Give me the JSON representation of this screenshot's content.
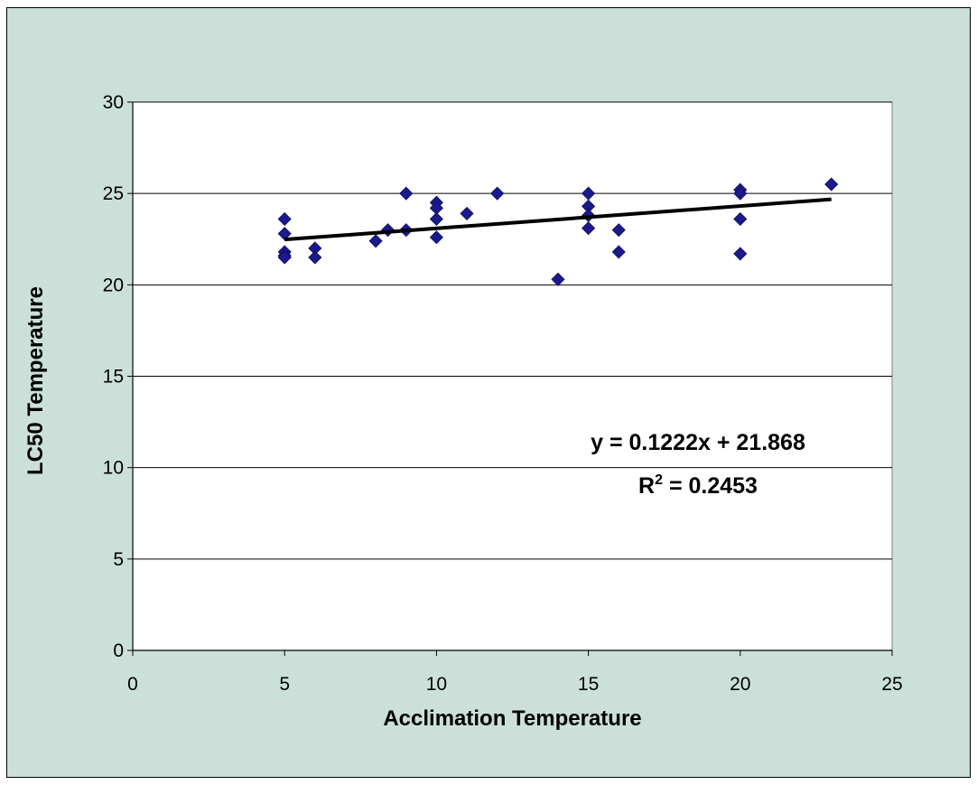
{
  "chart_data": {
    "type": "scatter",
    "xlabel": "Acclimation Temperature",
    "ylabel": "LC50 Temperature",
    "xlim": [
      0,
      25
    ],
    "ylim": [
      0,
      30
    ],
    "xticks": [
      0,
      5,
      10,
      15,
      20,
      25
    ],
    "yticks": [
      0,
      5,
      10,
      15,
      20,
      25,
      30
    ],
    "grid": "horizontal major gridlines",
    "legend": "none",
    "marker": "diamond",
    "colors": {
      "marker": "#1a1a8c",
      "trendline": "#000000",
      "plot_bg": "#ffffff",
      "chart_bg": "#cce0da"
    },
    "points": [
      {
        "x": 5,
        "y": 23.6
      },
      {
        "x": 5,
        "y": 22.8
      },
      {
        "x": 5,
        "y": 21.8
      },
      {
        "x": 5,
        "y": 21.6
      },
      {
        "x": 5,
        "y": 21.5
      },
      {
        "x": 6,
        "y": 22.0
      },
      {
        "x": 6,
        "y": 21.5
      },
      {
        "x": 8,
        "y": 22.4
      },
      {
        "x": 8.4,
        "y": 23.0
      },
      {
        "x": 9,
        "y": 25.0
      },
      {
        "x": 9,
        "y": 23.0
      },
      {
        "x": 10,
        "y": 24.5
      },
      {
        "x": 10,
        "y": 24.2
      },
      {
        "x": 10,
        "y": 23.6
      },
      {
        "x": 10,
        "y": 22.6
      },
      {
        "x": 11,
        "y": 23.9
      },
      {
        "x": 12,
        "y": 25.0
      },
      {
        "x": 14,
        "y": 20.3
      },
      {
        "x": 15,
        "y": 25.0
      },
      {
        "x": 15,
        "y": 24.3
      },
      {
        "x": 15,
        "y": 23.8
      },
      {
        "x": 15,
        "y": 23.1
      },
      {
        "x": 16,
        "y": 23.0
      },
      {
        "x": 16,
        "y": 21.8
      },
      {
        "x": 20,
        "y": 25.2
      },
      {
        "x": 20,
        "y": 25.0
      },
      {
        "x": 20,
        "y": 23.6
      },
      {
        "x": 20,
        "y": 21.7
      },
      {
        "x": 23,
        "y": 25.5
      }
    ],
    "trendline": {
      "slope": 0.1222,
      "intercept": 21.868,
      "x_range": [
        5,
        23
      ]
    },
    "annotations": {
      "equation": "y = 0.1222x + 21.868",
      "r2_prefix": "R",
      "r2_sup": "2",
      "r2_value": " = 0.2453"
    }
  }
}
